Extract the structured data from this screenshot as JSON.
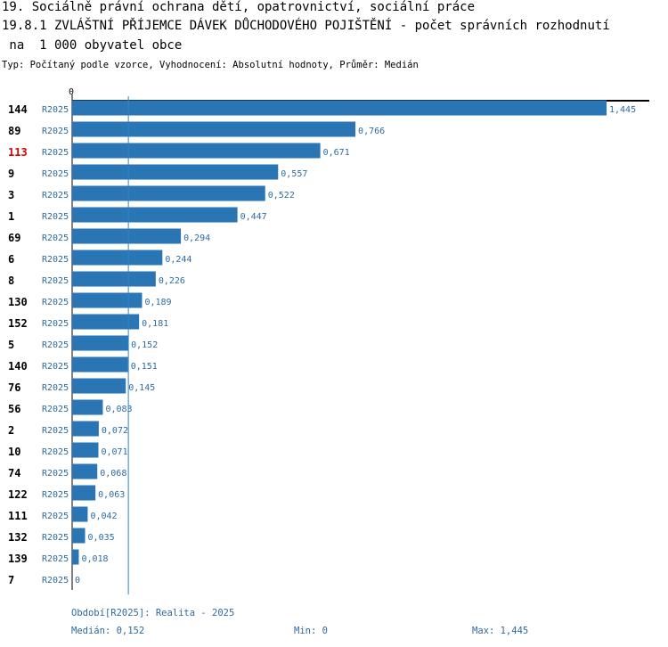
{
  "chart_data": {
    "type": "bar",
    "orientation": "horizontal",
    "title_line1": "19. Sociálně právní ochrana dětí, opatrovnictví, sociální práce",
    "title_line2": "19.8.1 ZVLÁŠTNÍ PŘÍJEMCE DÁVEK DŮCHODOVÉHO POJIŠTĚNÍ - počet správních rozhodnutí",
    "title_line3": " na  1 000 obyvatel obce",
    "subtitle": "Typ: Počítaný podle vzorce, Vyhodnocení: Absolutní hodnoty, Průměr: Medián",
    "axis_zero_label": "0",
    "xlim": [
      0,
      1.445
    ],
    "series_label": "R2025",
    "highlight_color": "#dd0000",
    "bar_color": "#2a76b4",
    "label_color": "#2e6aa0",
    "median_line_color": "#2e86c1",
    "median": 0.152,
    "rows": [
      {
        "id": "144",
        "value": 1.445,
        "label": "1,445",
        "highlight": false
      },
      {
        "id": "89",
        "value": 0.766,
        "label": "0,766",
        "highlight": false
      },
      {
        "id": "113",
        "value": 0.671,
        "label": "0,671",
        "highlight": true
      },
      {
        "id": "9",
        "value": 0.557,
        "label": "0,557",
        "highlight": false
      },
      {
        "id": "3",
        "value": 0.522,
        "label": "0,522",
        "highlight": false
      },
      {
        "id": "1",
        "value": 0.447,
        "label": "0,447",
        "highlight": false
      },
      {
        "id": "69",
        "value": 0.294,
        "label": "0,294",
        "highlight": false
      },
      {
        "id": "6",
        "value": 0.244,
        "label": "0,244",
        "highlight": false
      },
      {
        "id": "8",
        "value": 0.226,
        "label": "0,226",
        "highlight": false
      },
      {
        "id": "130",
        "value": 0.189,
        "label": "0,189",
        "highlight": false
      },
      {
        "id": "152",
        "value": 0.181,
        "label": "0,181",
        "highlight": false
      },
      {
        "id": "5",
        "value": 0.152,
        "label": "0,152",
        "highlight": false
      },
      {
        "id": "140",
        "value": 0.151,
        "label": "0,151",
        "highlight": false
      },
      {
        "id": "76",
        "value": 0.145,
        "label": "0,145",
        "highlight": false
      },
      {
        "id": "56",
        "value": 0.083,
        "label": "0,083",
        "highlight": false
      },
      {
        "id": "2",
        "value": 0.072,
        "label": "0,072",
        "highlight": false
      },
      {
        "id": "10",
        "value": 0.071,
        "label": "0,071",
        "highlight": false
      },
      {
        "id": "74",
        "value": 0.068,
        "label": "0,068",
        "highlight": false
      },
      {
        "id": "122",
        "value": 0.063,
        "label": "0,063",
        "highlight": false
      },
      {
        "id": "111",
        "value": 0.042,
        "label": "0,042",
        "highlight": false
      },
      {
        "id": "132",
        "value": 0.035,
        "label": "0,035",
        "highlight": false
      },
      {
        "id": "139",
        "value": 0.018,
        "label": "0,018",
        "highlight": false
      },
      {
        "id": "7",
        "value": 0,
        "label": "0",
        "highlight": false
      }
    ]
  },
  "footer": {
    "period": "Období[R2025]: Realita - 2025",
    "median": "Medián: 0,152",
    "min": "Min: 0",
    "max": "Max: 1,445"
  }
}
